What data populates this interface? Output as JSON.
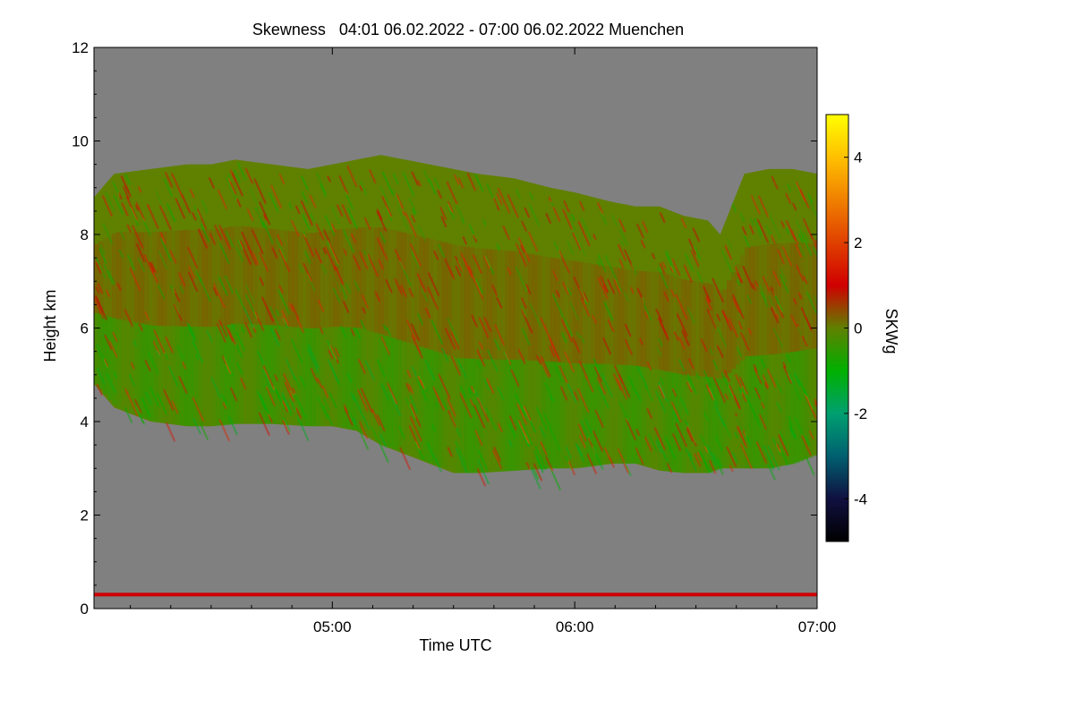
{
  "chart_data": {
    "type": "heatmap",
    "title": "Skewness   04:01 06.02.2022 - 07:00 06.02.2022 Muenchen",
    "xlabel": "Time UTC",
    "ylabel": "Height km",
    "xlim_hours": [
      4.0167,
      7.0
    ],
    "ylim": [
      0,
      12
    ],
    "x_ticks": [
      {
        "value": 5.0,
        "label": "05:00"
      },
      {
        "value": 6.0,
        "label": "06:00"
      },
      {
        "value": 7.0,
        "label": "07:00"
      }
    ],
    "y_ticks": [
      {
        "value": 0,
        "label": "0"
      },
      {
        "value": 2,
        "label": "2"
      },
      {
        "value": 4,
        "label": "4"
      },
      {
        "value": 6,
        "label": "6"
      },
      {
        "value": 8,
        "label": "8"
      },
      {
        "value": 10,
        "label": "10"
      },
      {
        "value": 12,
        "label": "12"
      }
    ],
    "colorbar": {
      "label": "SKWg",
      "range": [
        -5,
        5
      ],
      "ticks": [
        {
          "value": 4,
          "label": "4"
        },
        {
          "value": 2,
          "label": "2"
        },
        {
          "value": 0,
          "label": "0"
        },
        {
          "value": -2,
          "label": "-2"
        },
        {
          "value": -4,
          "label": "-4"
        }
      ],
      "stops": [
        {
          "value": -5,
          "color": "#000000"
        },
        {
          "value": -4,
          "color": "#101040"
        },
        {
          "value": -3,
          "color": "#006070"
        },
        {
          "value": -2,
          "color": "#00a070"
        },
        {
          "value": -1,
          "color": "#00b000"
        },
        {
          "value": 0,
          "color": "#608000"
        },
        {
          "value": 1,
          "color": "#d00000"
        },
        {
          "value": 2,
          "color": "#e04000"
        },
        {
          "value": 3,
          "color": "#f08000"
        },
        {
          "value": 4,
          "color": "#ffc000"
        },
        {
          "value": 5,
          "color": "#ffff00"
        }
      ]
    },
    "no_data_color": "#808080",
    "cloud_layer": {
      "description": "skewness field bounded by top and base heights (km) over time",
      "time_hours": [
        4.017,
        4.1,
        4.25,
        4.4,
        4.5,
        4.6,
        4.75,
        4.9,
        5.0,
        5.1,
        5.2,
        5.3,
        5.4,
        5.5,
        5.6,
        5.75,
        5.9,
        6.0,
        6.15,
        6.25,
        6.35,
        6.45,
        6.55,
        6.6,
        6.7,
        6.8,
        6.9,
        7.0
      ],
      "top_km": [
        8.8,
        9.3,
        9.4,
        9.5,
        9.5,
        9.6,
        9.5,
        9.4,
        9.5,
        9.6,
        9.7,
        9.6,
        9.5,
        9.4,
        9.3,
        9.2,
        9.0,
        8.9,
        8.7,
        8.6,
        8.6,
        8.4,
        8.3,
        8.0,
        9.3,
        9.4,
        9.4,
        9.3
      ],
      "base_km": [
        4.8,
        4.3,
        4.0,
        3.9,
        3.9,
        3.95,
        3.95,
        3.9,
        3.9,
        3.8,
        3.5,
        3.3,
        3.1,
        2.9,
        2.9,
        2.95,
        3.0,
        3.0,
        3.1,
        3.1,
        2.95,
        2.9,
        2.9,
        3.0,
        3.0,
        3.0,
        3.1,
        3.3
      ],
      "dominant_skewness": [
        {
          "height_km": 8.5,
          "value": 0.2
        },
        {
          "height_km": 7.0,
          "value": 0.4
        },
        {
          "height_km": 5.5,
          "value": -0.3
        },
        {
          "height_km": 4.3,
          "value": -0.6
        }
      ]
    },
    "surface_layer": {
      "height_km": 0.3,
      "value": 1.0
    }
  }
}
